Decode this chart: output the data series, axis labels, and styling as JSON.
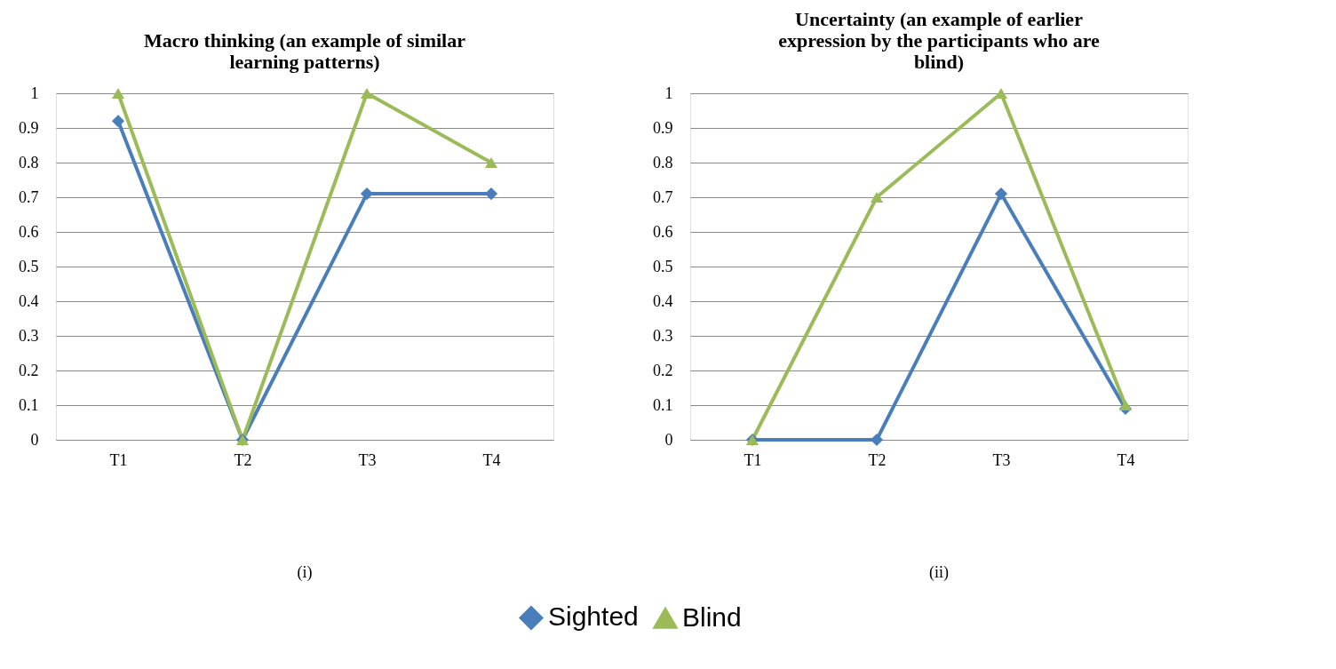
{
  "chart_data": [
    {
      "type": "line",
      "title": "Macro thinking (an example of similar learning patterns)",
      "categories": [
        "T1",
        "T2",
        "T3",
        "T4"
      ],
      "series": [
        {
          "name": "Sighted",
          "color": "#4a7ebb",
          "marker": "diamond",
          "values": [
            0.92,
            0,
            0.71,
            0.71
          ]
        },
        {
          "name": "Blind",
          "color": "#9bbb59",
          "marker": "triangle",
          "values": [
            1,
            0,
            1,
            0.8
          ]
        }
      ],
      "ylim": [
        0,
        1
      ],
      "yticks": [
        0,
        0.1,
        0.2,
        0.3,
        0.4,
        0.5,
        0.6,
        0.7,
        0.8,
        0.9,
        1
      ],
      "grid": "y",
      "legend": "bottom",
      "line_style": "solid",
      "annotations": [
        "(i)"
      ]
    },
    {
      "type": "line",
      "title": "Uncertainty (an example of earlier expression by the participants who are blind)",
      "categories": [
        "T1",
        "T2",
        "T3",
        "T4"
      ],
      "series": [
        {
          "name": "Sighted",
          "color": "#4a7ebb",
          "marker": "diamond",
          "values": [
            0,
            0,
            0.71,
            0.09
          ]
        },
        {
          "name": "Blind",
          "color": "#9bbb59",
          "marker": "triangle",
          "values": [
            0,
            0.7,
            1,
            0.1
          ]
        }
      ],
      "ylim": [
        0,
        1
      ],
      "yticks": [
        0,
        0.1,
        0.2,
        0.3,
        0.4,
        0.5,
        0.6,
        0.7,
        0.8,
        0.9,
        1
      ],
      "grid": "y",
      "legend": "bottom",
      "line_style": "solid",
      "annotations": [
        "(ii)"
      ]
    }
  ]
}
